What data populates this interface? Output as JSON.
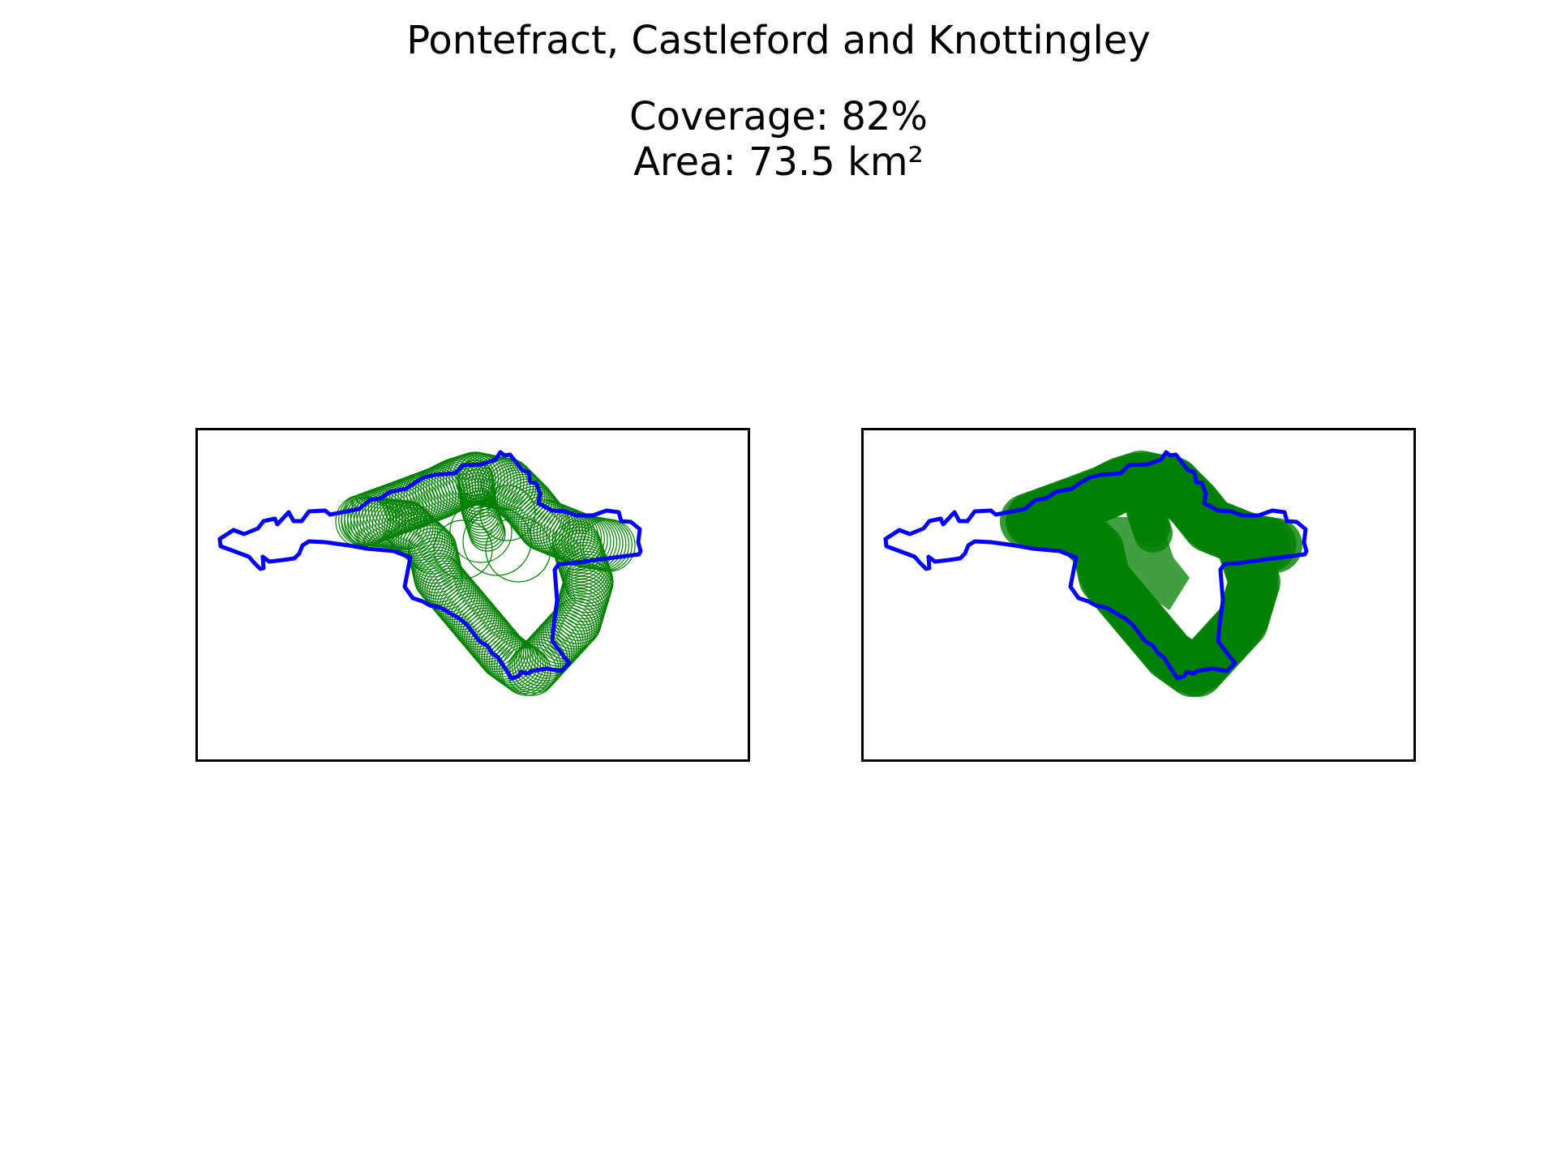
{
  "figure": {
    "title": "Pontefract, Castleford and Knottingley",
    "coverage_text": "Coverage: 82%",
    "area_text": "Area: 73.5 km²"
  },
  "panels": [
    {
      "name": "outline-view",
      "style": "circle-outlines"
    },
    {
      "name": "filled-view",
      "style": "filled-coverage"
    }
  ],
  "colors": {
    "boundary": "#0000ff",
    "coverage": "#008000",
    "frame": "#000000",
    "background": "#ffffff"
  }
}
